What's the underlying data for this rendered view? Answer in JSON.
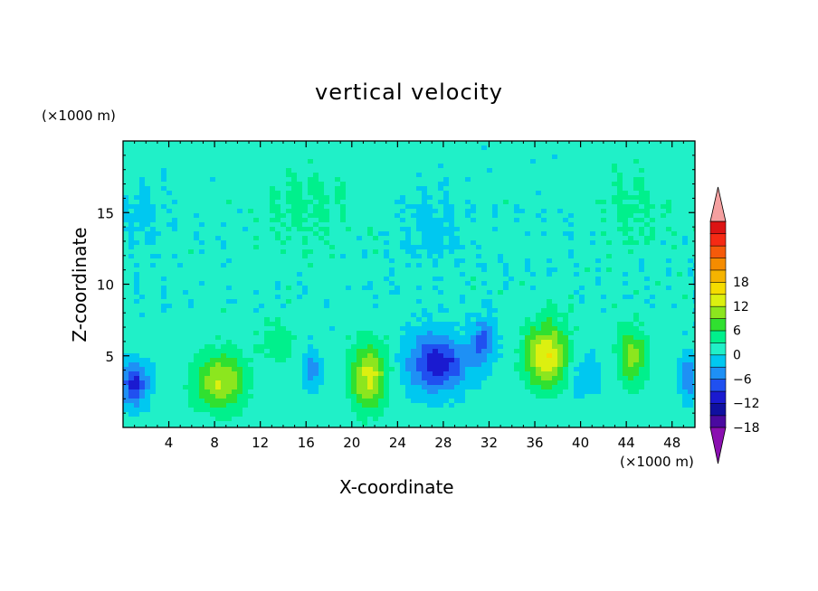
{
  "chart_data": {
    "type": "heatmap",
    "title": "vertical velocity",
    "xlabel": "X-coordinate",
    "ylabel": "Z-coordinate",
    "x_unit": "(×1000 m)",
    "y_unit": "(×1000 m)",
    "xlim": [
      0,
      50
    ],
    "ylim": [
      0,
      20
    ],
    "x_ticks": [
      4,
      8,
      12,
      16,
      20,
      24,
      28,
      32,
      36,
      40,
      44,
      48
    ],
    "y_ticks": [
      5,
      10,
      15
    ],
    "colorbar": {
      "min": -21,
      "max": 21,
      "step": 3,
      "tick_values": [
        18,
        12,
        6,
        0,
        -6,
        -12,
        -18
      ],
      "colors": [
        "#8a0fb0",
        "#4a0aa0",
        "#1010a0",
        "#1a1ad0",
        "#2050f0",
        "#1e90f5",
        "#00c8f0",
        "#20f0c8",
        "#00f08c",
        "#30e030",
        "#8ce61e",
        "#dcf010",
        "#f5dc00",
        "#f5b400",
        "#f58c00",
        "#f55a0a",
        "#f52a14",
        "#dc1414",
        "#f5a0a0"
      ]
    },
    "features": [
      {
        "x": 1,
        "z": 3.0,
        "w": 0.0,
        "sx": 1.2,
        "sz": 1.5,
        "amp": -11
      },
      {
        "x": 8.5,
        "z": 3.2,
        "w": 0.0,
        "sx": 2.2,
        "sz": 2.0,
        "amp": 11
      },
      {
        "x": 13.5,
        "z": 6.0,
        "w": 0.0,
        "sx": 1.6,
        "sz": 1.5,
        "amp": 4
      },
      {
        "x": 16.5,
        "z": 4.0,
        "w": 0.0,
        "sx": 0.9,
        "sz": 1.4,
        "amp": -5
      },
      {
        "x": 21.5,
        "z": 3.5,
        "w": 0.0,
        "sx": 1.6,
        "sz": 2.3,
        "amp": 12
      },
      {
        "x": 27.5,
        "z": 4.5,
        "w": 0.0,
        "sx": 2.6,
        "sz": 2.0,
        "amp": -12
      },
      {
        "x": 31.5,
        "z": 6.0,
        "w": 0.0,
        "sx": 1.0,
        "sz": 1.6,
        "amp": -8
      },
      {
        "x": 37.0,
        "z": 5.0,
        "w": 0.0,
        "sx": 1.8,
        "sz": 2.2,
        "amp": 14
      },
      {
        "x": 40.5,
        "z": 3.5,
        "w": 0.0,
        "sx": 1.3,
        "sz": 1.5,
        "amp": -4
      },
      {
        "x": 44.5,
        "z": 5.0,
        "w": 0.0,
        "sx": 1.3,
        "sz": 2.0,
        "amp": 9
      },
      {
        "x": 49.5,
        "z": 3.5,
        "w": 0.0,
        "sx": 0.8,
        "sz": 1.5,
        "amp": -7
      },
      {
        "x": 16.0,
        "z": 15.5,
        "w": 0.0,
        "sx": 4.0,
        "sz": 3.0,
        "amp": 2.5
      },
      {
        "x": 44.5,
        "z": 15.5,
        "w": 0.0,
        "sx": 3.0,
        "sz": 3.0,
        "amp": 2.5
      },
      {
        "x": 27.0,
        "z": 14.0,
        "w": 0.0,
        "sx": 2.5,
        "sz": 2.5,
        "amp": -2.5
      },
      {
        "x": 1.5,
        "z": 15.0,
        "w": 0.0,
        "sx": 2.0,
        "sz": 2.0,
        "amp": -2.5
      }
    ]
  }
}
